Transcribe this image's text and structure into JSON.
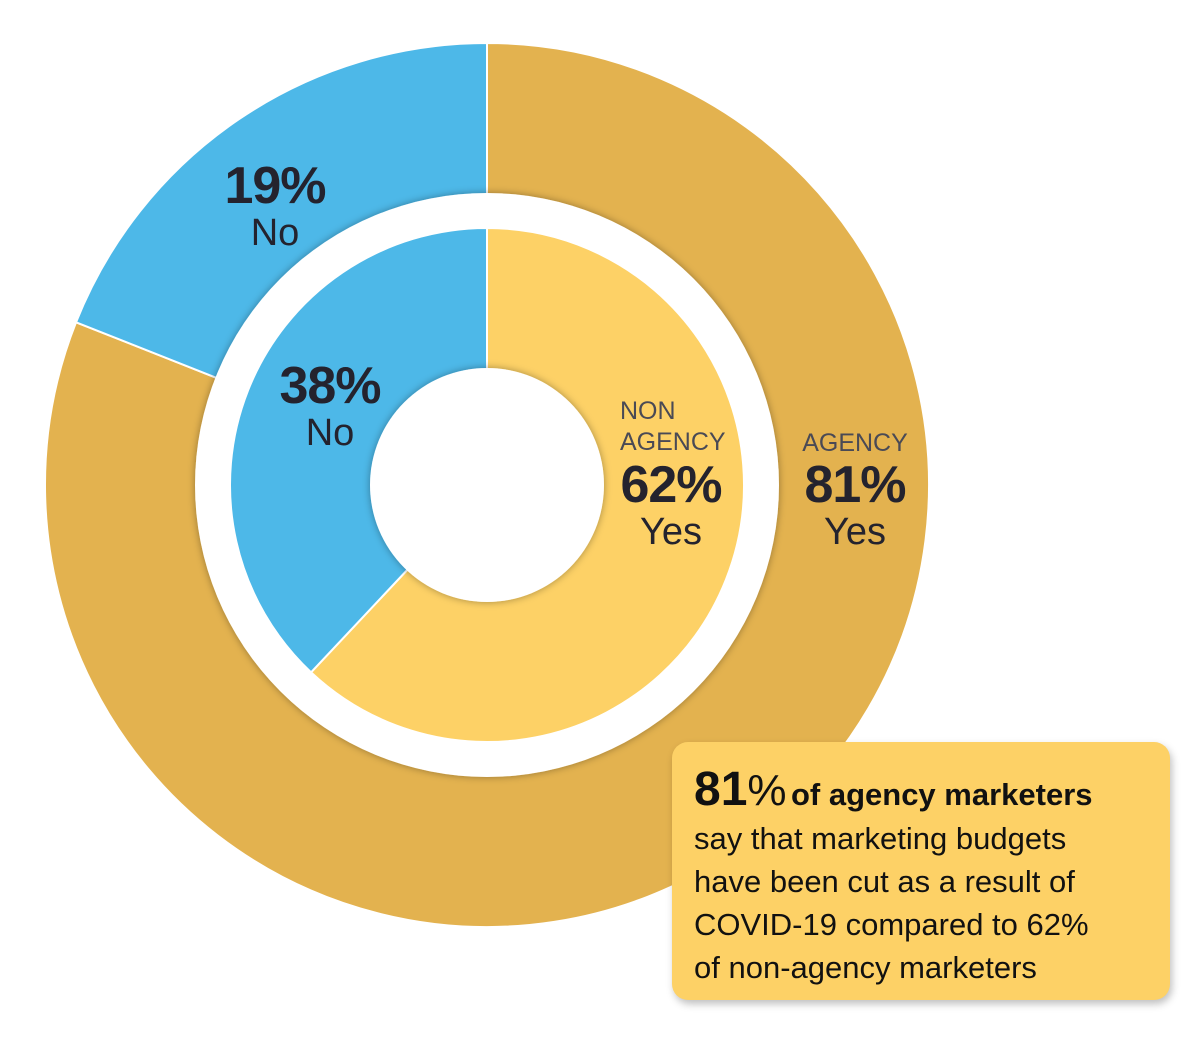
{
  "chart_data": {
    "type": "pie",
    "variant": "nested-donut",
    "series": [
      {
        "name": "AGENCY",
        "ring": "outer",
        "slices": [
          {
            "label": "Yes",
            "value": 81,
            "color": "#e3b24f"
          },
          {
            "label": "No",
            "value": 19,
            "color": "#4db8e8"
          }
        ]
      },
      {
        "name": "NON AGENCY",
        "ring": "inner",
        "slices": [
          {
            "label": "Yes",
            "value": 62,
            "color": "#fdd166"
          },
          {
            "label": "No",
            "value": 38,
            "color": "#4db8e8"
          }
        ]
      }
    ],
    "data_labels": {
      "agency_group": "AGENCY",
      "agency_yes_pct": "81%",
      "agency_yes": "Yes",
      "agency_no_pct": "19%",
      "agency_no": "No",
      "nonagency_group_1": "NON",
      "nonagency_group_2": "AGENCY",
      "nonagency_yes_pct": "62%",
      "nonagency_yes": "Yes",
      "nonagency_no_pct": "38%",
      "nonagency_no": "No"
    }
  },
  "callout": {
    "highlight_number": "81",
    "highlight_percent": "%",
    "highlight_text": "of agency marketers",
    "lines": [
      "say that marketing budgets",
      "have been cut as a result of",
      "COVID-19 compared to 62%",
      "of non-agency marketers"
    ],
    "background": "#fdd166"
  }
}
